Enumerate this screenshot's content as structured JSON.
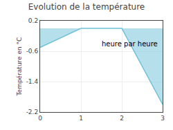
{
  "chart_data": {
    "type": "area",
    "title": "Evolution de la température",
    "xlabel": "heure par heure",
    "ylabel": "Température en °C",
    "x": [
      0,
      1,
      2,
      3
    ],
    "series": [
      {
        "color": "#6cc0d8",
        "values": [
          -0.5,
          0.0,
          0.0,
          -2.0
        ]
      }
    ],
    "xlim": [
      0,
      3
    ],
    "xticks": [
      0,
      1,
      2,
      3
    ],
    "ylim": [
      -2.2,
      0.2
    ],
    "yticks": [
      0.2,
      -0.6,
      -1.4,
      -2.2
    ],
    "grid": true
  }
}
